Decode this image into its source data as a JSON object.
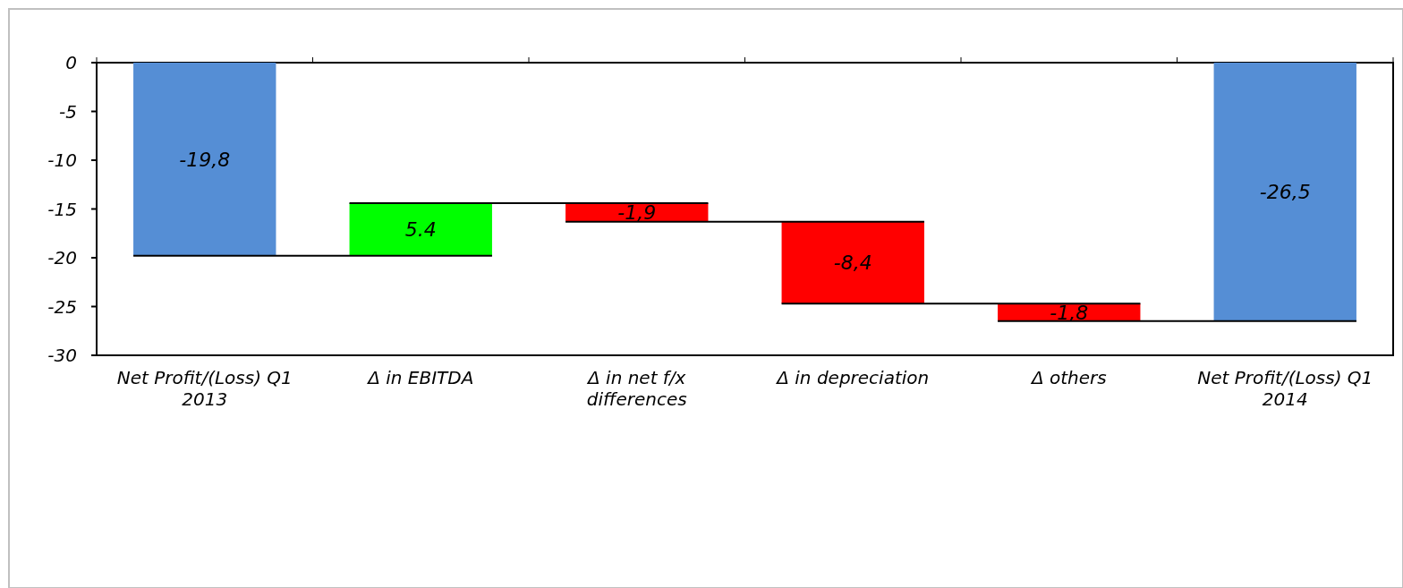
{
  "chart_data": {
    "type": "bar",
    "categories": [
      "Net Profit/(Loss) Q1 2013",
      "Δ in EBITDA",
      "Δ in net f/x differences",
      "Δ  in depreciation",
      "Δ others",
      "Net Profit/(Loss) Q1 2014"
    ],
    "values": [
      -19.8,
      5.4,
      -1.9,
      -8.4,
      -1.8,
      -26.5
    ],
    "base": [
      0,
      -19.8,
      -14.4,
      -16.3,
      -24.7,
      0
    ],
    "colors": [
      "#558ed5",
      "#00ff00",
      "#ff0000",
      "#ff0000",
      "#ff0000",
      "#558ed5"
    ],
    "value_labels": [
      "-19,8",
      "5.4",
      "-1,9",
      "-8,4",
      "-1,8",
      "-26,5"
    ],
    "ylim": [
      -30,
      0
    ],
    "yticks": [
      0,
      -5,
      -10,
      -15,
      -20,
      -25,
      -30
    ]
  }
}
